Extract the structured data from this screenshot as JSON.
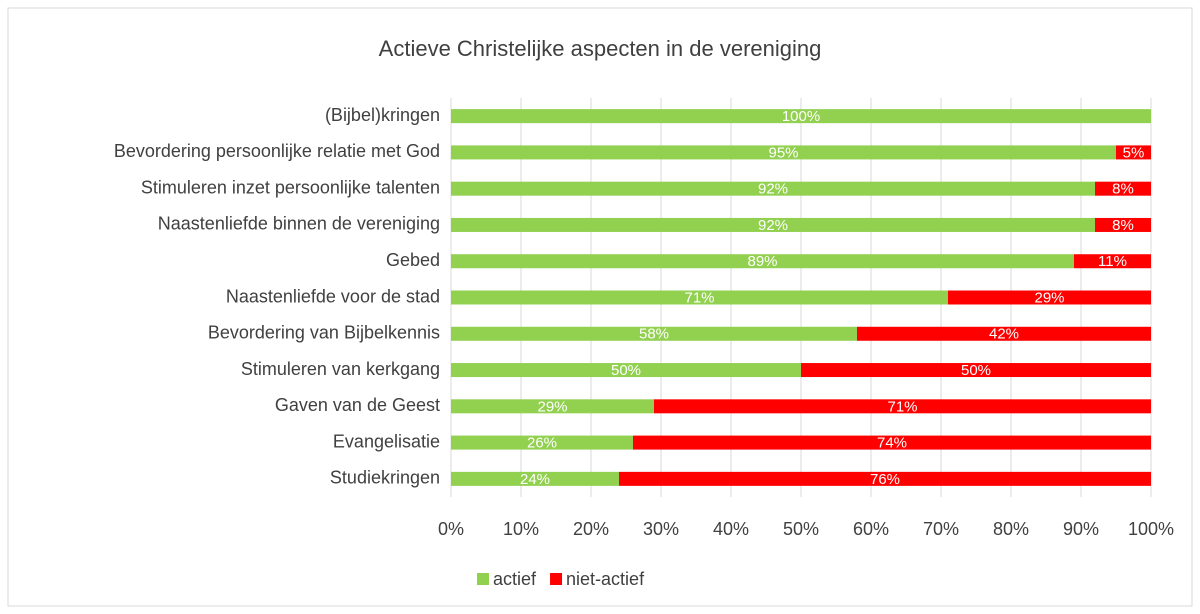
{
  "chart_data": {
    "type": "stacked_barh",
    "title": "Actieve Christelijke aspecten in de vereniging",
    "categories": [
      "(Bijbel)kringen",
      "Bevordering persoonlijke relatie met God",
      "Stimuleren inzet persoonlijke talenten",
      "Naastenliefde binnen de vereniging",
      "Gebed",
      "Naastenliefde voor de stad",
      "Bevordering van Bijbelkennis",
      "Stimuleren van kerkgang",
      "Gaven van de Geest",
      "Evangelisatie",
      "Studiekringen"
    ],
    "series": [
      {
        "name": "actief",
        "color": "#92d050",
        "values": [
          100,
          95,
          92,
          92,
          89,
          71,
          58,
          50,
          29,
          26,
          24
        ],
        "value_labels": [
          "100%",
          "95%",
          "92%",
          "92%",
          "89%",
          "71%",
          "58%",
          "50%",
          "29%",
          "26%",
          "24%"
        ]
      },
      {
        "name": "niet-actief",
        "color": "#ff0000",
        "values": [
          0,
          5,
          8,
          8,
          11,
          29,
          42,
          50,
          71,
          74,
          76
        ],
        "value_labels": [
          null,
          "5%",
          "8%",
          "8%",
          "11%",
          "29%",
          "42%",
          "50%",
          "71%",
          "74%",
          "76%"
        ]
      }
    ],
    "xlim": [
      0,
      100
    ],
    "xticks": [
      {
        "value": 0,
        "label": "0%"
      },
      {
        "value": 10,
        "label": "10%"
      },
      {
        "value": 20,
        "label": "20%"
      },
      {
        "value": 30,
        "label": "30%"
      },
      {
        "value": 40,
        "label": "40%"
      },
      {
        "value": 50,
        "label": "50%"
      },
      {
        "value": 60,
        "label": "60%"
      },
      {
        "value": 70,
        "label": "70%"
      },
      {
        "value": 80,
        "label": "80%"
      },
      {
        "value": 90,
        "label": "90%"
      },
      {
        "value": 100,
        "label": "100%"
      }
    ],
    "grid": true,
    "legend": "bottom"
  }
}
